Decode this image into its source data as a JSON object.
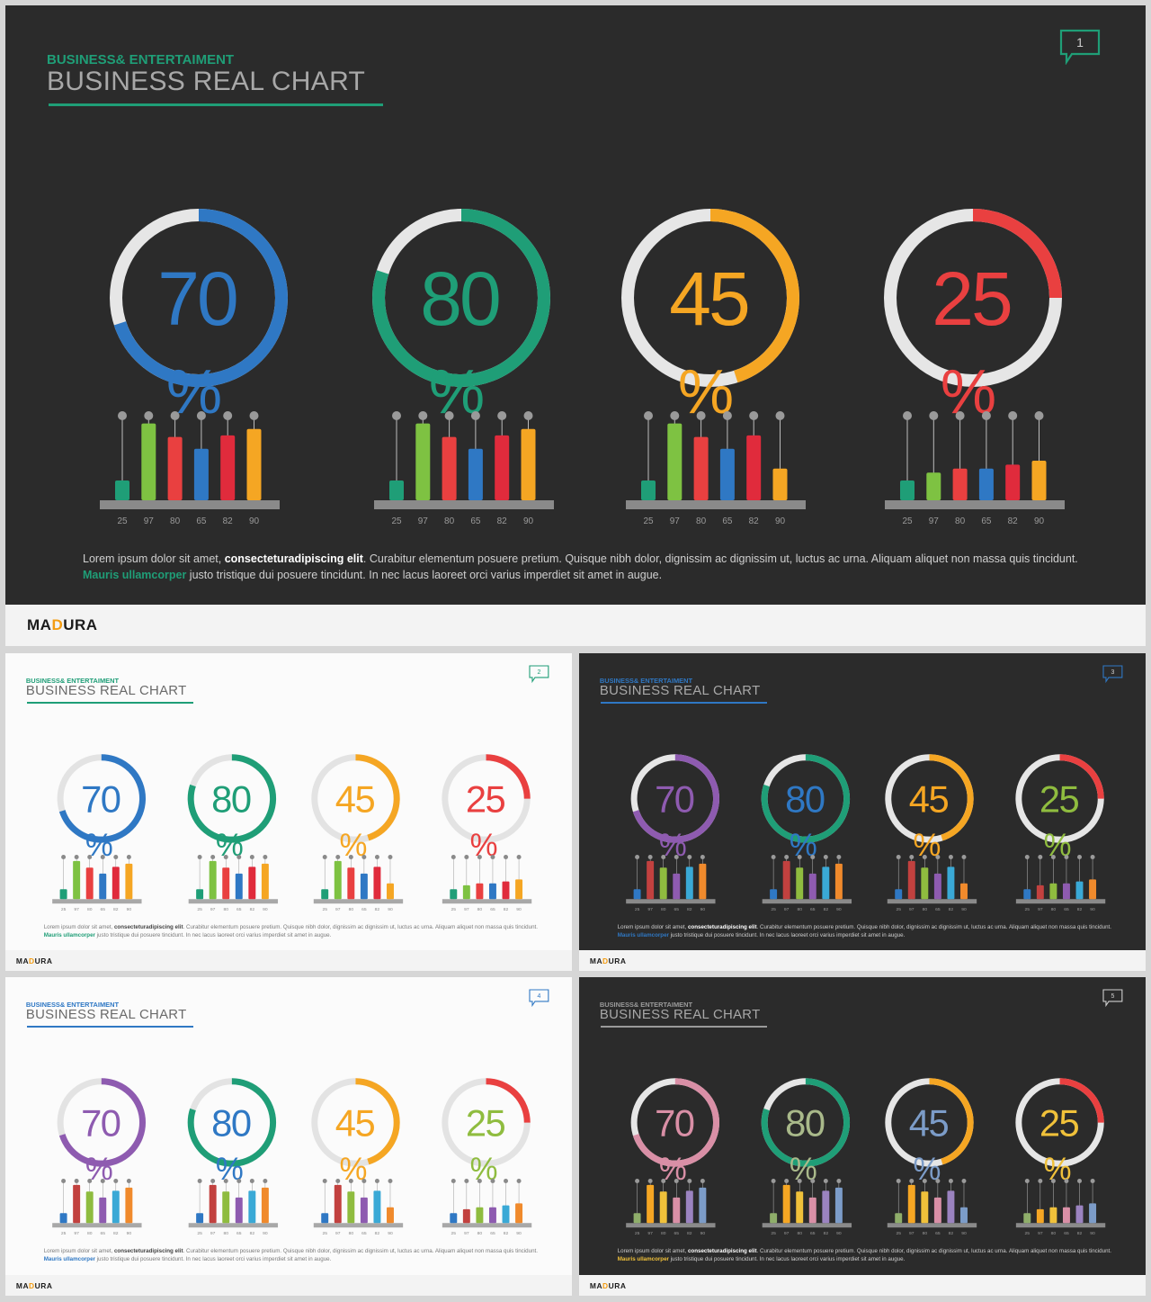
{
  "common": {
    "supertitle": "BUSINESS& ENTERTAIMENT",
    "title": "BUSINESS REAL CHART",
    "brand_a": "MA",
    "brand_b": "D",
    "brand_c": "URA",
    "para_a": "Lorem ipsum dolor sit amet, ",
    "para_bold": "consecteturadipiscing elit",
    "para_b": ". Curabitur elementum posuere pretium. Quisque nibh dolor, dignissim ac dignissim ut, luctus ac urna. Aliquam aliquet non massa quis tincidunt. ",
    "para_link": "Mauris ullamcorper",
    "para_c": " justo tristique dui posuere tincidunt. In nec lacus laoreet orci varius imperdiet sit amet in augue.",
    "percent_sign": "%"
  },
  "slides": [
    {
      "page": "1",
      "theme": "dark",
      "accent": "#1f9e77",
      "comment_color": "#1f9e77",
      "link_color": "#1f9e77",
      "ring_colors": [
        "#2f78c4",
        "#1f9e77",
        "#f5a623",
        "#e94040"
      ],
      "number_colors": [
        "#2f78c4",
        "#1f9e77",
        "#f5a623",
        "#e94040"
      ],
      "bar_colors": [
        "#1f9e77",
        "#7ec242",
        "#e94040",
        "#2f78c4",
        "#e02b3c",
        "#f5a623"
      ]
    },
    {
      "page": "2",
      "theme": "light",
      "accent": "#1f9e77",
      "comment_color": "#1f9e77",
      "link_color": "#1f9e77",
      "ring_colors": [
        "#2f78c4",
        "#1f9e77",
        "#f5a623",
        "#e94040"
      ],
      "number_colors": [
        "#2f78c4",
        "#1f9e77",
        "#f5a623",
        "#e94040"
      ],
      "bar_colors": [
        "#1f9e77",
        "#7ec242",
        "#e94040",
        "#2f78c4",
        "#e02b3c",
        "#f5a623"
      ]
    },
    {
      "page": "3",
      "theme": "dark",
      "accent": "#2f78c4",
      "comment_color": "#2f78c4",
      "link_color": "#2f78c4",
      "ring_colors": [
        "#8e5bb0",
        "#1f9e77",
        "#f5a623",
        "#e94040"
      ],
      "number_colors": [
        "#8e5bb0",
        "#2f78c4",
        "#f5a623",
        "#8fbc3f"
      ],
      "bar_colors": [
        "#2f78c4",
        "#c2413f",
        "#8fbc3f",
        "#8e5bb0",
        "#3aa9d6",
        "#f08a2c"
      ]
    },
    {
      "page": "4",
      "theme": "light",
      "accent": "#2f78c4",
      "comment_color": "#2f78c4",
      "link_color": "#2f78c4",
      "ring_colors": [
        "#8e5bb0",
        "#1f9e77",
        "#f5a623",
        "#e94040"
      ],
      "number_colors": [
        "#8e5bb0",
        "#2f78c4",
        "#f5a623",
        "#8fbc3f"
      ],
      "bar_colors": [
        "#2f78c4",
        "#c2413f",
        "#8fbc3f",
        "#8e5bb0",
        "#3aa9d6",
        "#f08a2c"
      ]
    },
    {
      "page": "5",
      "theme": "dark",
      "accent": "#9a9a9a",
      "comment_color": "#cfcfcf",
      "link_color": "#f0c13a",
      "ring_colors": [
        "#d98fa6",
        "#1f9e77",
        "#f5a623",
        "#e94040"
      ],
      "number_colors": [
        "#d98fa6",
        "#a9b98a",
        "#7c9cc8",
        "#f0c13a"
      ],
      "bar_colors": [
        "#8fae6a",
        "#f5a623",
        "#f0c13a",
        "#d98fa6",
        "#9b83c0",
        "#7c9cc8"
      ]
    }
  ],
  "chart_data": [
    {
      "type": "donut",
      "title": "BUSINESS REAL CHART",
      "categories": [
        "70",
        "80",
        "45",
        "25"
      ],
      "values": [
        70,
        80,
        45,
        25
      ],
      "unit": "%"
    },
    {
      "type": "bar",
      "groups": 4,
      "categories": [
        "25",
        "97",
        "80",
        "65",
        "82",
        "90"
      ],
      "values": [
        25,
        97,
        80,
        65,
        82,
        90
      ],
      "values_by_group": [
        [
          25,
          97,
          80,
          65,
          82,
          90
        ],
        [
          25,
          97,
          80,
          65,
          82,
          90
        ],
        [
          25,
          97,
          80,
          65,
          82,
          40
        ],
        [
          25,
          35,
          40,
          40,
          45,
          50
        ]
      ]
    }
  ]
}
